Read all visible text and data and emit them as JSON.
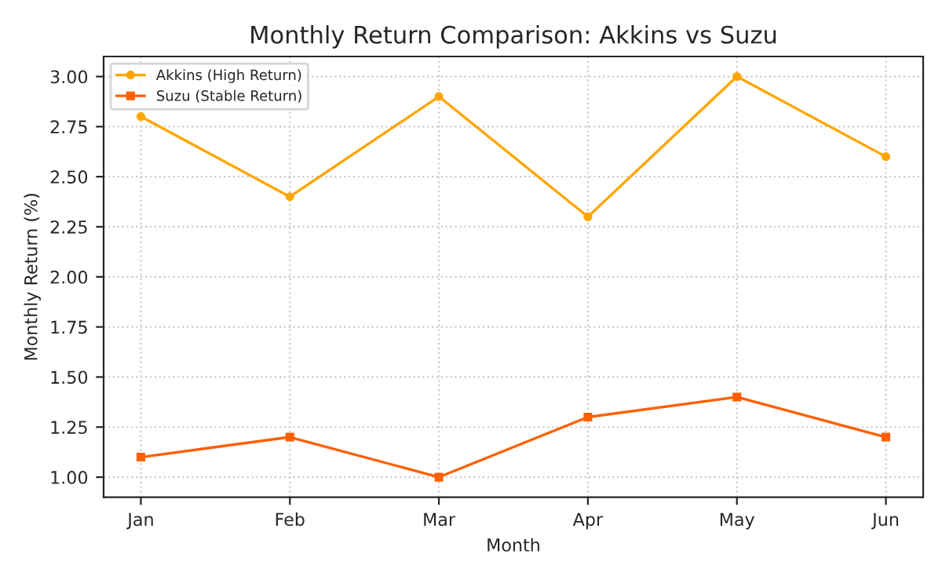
{
  "chart_data": {
    "type": "line",
    "title": "Monthly Return Comparison: Akkins vs Suzu",
    "xlabel": "Month",
    "ylabel": "Monthly Return (%)",
    "categories": [
      "Jan",
      "Feb",
      "Mar",
      "Apr",
      "May",
      "Jun"
    ],
    "series": [
      {
        "name": "Akkins (High Return)",
        "color": "#ffa500",
        "marker": "circle",
        "values": [
          2.8,
          2.4,
          2.9,
          2.3,
          3.0,
          2.6
        ]
      },
      {
        "name": "Suzu (Stable Return)",
        "color": "#ff5f00",
        "marker": "square",
        "values": [
          1.1,
          1.2,
          1.0,
          1.3,
          1.4,
          1.2
        ]
      }
    ],
    "ylim": [
      0.9,
      3.1
    ],
    "yticks": [
      {
        "value": 1.0,
        "label": "1.00"
      },
      {
        "value": 1.25,
        "label": "1.25"
      },
      {
        "value": 1.5,
        "label": "1.50"
      },
      {
        "value": 1.75,
        "label": "1.75"
      },
      {
        "value": 2.0,
        "label": "2.00"
      },
      {
        "value": 2.25,
        "label": "2.25"
      },
      {
        "value": 2.5,
        "label": "2.50"
      },
      {
        "value": 2.75,
        "label": "2.75"
      },
      {
        "value": 3.0,
        "label": "3.00"
      }
    ],
    "grid": true,
    "legend": "top left",
    "line_style": "solid"
  }
}
